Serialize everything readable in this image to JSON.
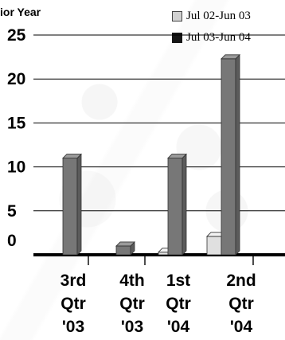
{
  "title": "ior Year",
  "legend": {
    "series_1": "Jul 02-Jun 03",
    "series_2": "Jul 03-Jun 04"
  },
  "colors": {
    "series_1_face": "#e0e0e0",
    "series_1_side": "#bdbdbd",
    "series_2_face": "#777777",
    "series_2_side": "#5b5b5b",
    "series_2_top": "#9a9a9a",
    "axis": "#000000",
    "grid": "#000000"
  },
  "chart_data": {
    "type": "bar",
    "title": "ior Year",
    "categories": [
      [
        "3rd",
        "Qtr",
        "'03"
      ],
      [
        "4th",
        "Qtr",
        "'03"
      ],
      [
        "1st",
        "Qtr",
        "'04"
      ],
      [
        "2nd",
        "Qtr",
        "'04"
      ]
    ],
    "series": [
      {
        "name": "Jul 02-Jun 03",
        "values": [
          0,
          0,
          0.3,
          2.1
        ]
      },
      {
        "name": "Jul 03-Jun 04",
        "values": [
          11,
          1,
          11,
          22.3
        ]
      }
    ],
    "yticks": [
      "25",
      "20",
      "15",
      "10",
      "5",
      "0"
    ],
    "ylim": [
      0,
      25
    ],
    "grid": true,
    "legend_position": "top-right",
    "xlabel": "",
    "ylabel": ""
  }
}
